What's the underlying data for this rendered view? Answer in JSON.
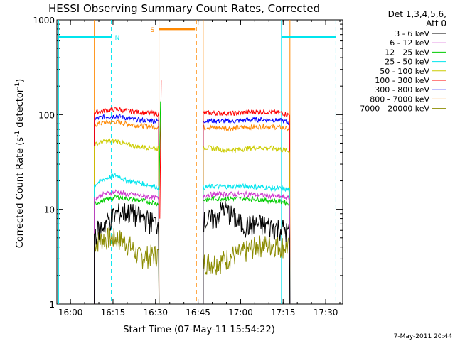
{
  "chart_data": {
    "type": "line",
    "title": "HESSI Observing Summary Count Rates, Corrected",
    "xlabel": "Start Time (07-May-11 15:54:22)",
    "ylabel": "Corrected Count Rate (s",
    "ylabel_sup1": "-1",
    "ylabel_mid": " detector",
    "ylabel_sup2": "-1",
    "ylabel_end": ")",
    "y_scale": "log",
    "xlim": [
      15.92,
      17.6
    ],
    "ylim": [
      1,
      1000
    ],
    "x_ticks": [
      {
        "value": 16.0,
        "label": "16:00"
      },
      {
        "value": 16.25,
        "label": "16:15"
      },
      {
        "value": 16.5,
        "label": "16:30"
      },
      {
        "value": 16.75,
        "label": "16:45"
      },
      {
        "value": 17.0,
        "label": "17:00"
      },
      {
        "value": 17.25,
        "label": "17:15"
      },
      {
        "value": 17.5,
        "label": "17:30"
      }
    ],
    "y_ticks": [
      {
        "value": 1,
        "label": "1"
      },
      {
        "value": 10,
        "label": "10"
      },
      {
        "value": 100,
        "label": "100"
      },
      {
        "value": 1000,
        "label": "1000"
      }
    ],
    "legend_header": [
      "Det 1,3,4,5,6,",
      "Att 0"
    ],
    "legend_position": "right",
    "segments": [
      [
        16.14,
        16.52
      ],
      [
        16.78,
        17.29
      ]
    ],
    "series": [
      {
        "name": "3 - 6 keV",
        "color": "#000000",
        "values": [
          [
            16.14,
            5.5
          ],
          [
            16.2,
            7.0
          ],
          [
            16.27,
            9.0
          ],
          [
            16.33,
            9.5
          ],
          [
            16.4,
            8.5
          ],
          [
            16.47,
            7.5
          ],
          [
            16.52,
            7.0
          ],
          [
            16.78,
            7.5
          ],
          [
            16.85,
            8.0
          ],
          [
            16.9,
            10.5
          ],
          [
            16.95,
            8.5
          ],
          [
            17.0,
            7.0
          ],
          [
            17.05,
            6.8
          ],
          [
            17.1,
            7.0
          ],
          [
            17.15,
            6.8
          ],
          [
            17.2,
            6.5
          ],
          [
            17.25,
            6.3
          ],
          [
            17.29,
            5.5
          ]
        ]
      },
      {
        "name": "6 - 12 keV",
        "color": "#cc33cc",
        "values": [
          [
            16.14,
            13
          ],
          [
            16.2,
            14.5
          ],
          [
            16.27,
            15.5
          ],
          [
            16.33,
            14.5
          ],
          [
            16.4,
            14
          ],
          [
            16.47,
            13.5
          ],
          [
            16.52,
            13
          ],
          [
            16.78,
            14
          ],
          [
            16.85,
            14.5
          ],
          [
            16.95,
            14.5
          ],
          [
            17.05,
            14.5
          ],
          [
            17.15,
            14
          ],
          [
            17.25,
            13.5
          ],
          [
            17.29,
            13
          ]
        ]
      },
      {
        "name": "12 - 25 keV",
        "color": "#00cc00",
        "values": [
          [
            16.14,
            11.5
          ],
          [
            16.2,
            12.5
          ],
          [
            16.27,
            13.5
          ],
          [
            16.33,
            13.0
          ],
          [
            16.4,
            12.5
          ],
          [
            16.47,
            12
          ],
          [
            16.52,
            11.5
          ],
          [
            16.78,
            12.5
          ],
          [
            16.85,
            13
          ],
          [
            16.95,
            13
          ],
          [
            17.05,
            13
          ],
          [
            17.15,
            12.5
          ],
          [
            17.25,
            12
          ],
          [
            17.29,
            11.5
          ]
        ]
      },
      {
        "name": "25 - 50 keV",
        "color": "#00e5ee",
        "values": [
          [
            16.14,
            18
          ],
          [
            16.2,
            21
          ],
          [
            16.27,
            23
          ],
          [
            16.33,
            20
          ],
          [
            16.4,
            19
          ],
          [
            16.47,
            18
          ],
          [
            16.52,
            17
          ],
          [
            16.78,
            17
          ],
          [
            16.85,
            17.5
          ],
          [
            16.95,
            17.5
          ],
          [
            17.05,
            17.5
          ],
          [
            17.15,
            17
          ],
          [
            17.25,
            16.5
          ],
          [
            17.29,
            16
          ]
        ]
      },
      {
        "name": "50 - 100 keV",
        "color": "#cccc00",
        "values": [
          [
            16.14,
            48
          ],
          [
            16.2,
            52
          ],
          [
            16.27,
            53
          ],
          [
            16.33,
            48
          ],
          [
            16.4,
            46
          ],
          [
            16.47,
            45
          ],
          [
            16.52,
            44
          ],
          [
            16.78,
            45
          ],
          [
            16.85,
            44
          ],
          [
            16.92,
            42
          ],
          [
            17.0,
            43
          ],
          [
            17.1,
            45
          ],
          [
            17.2,
            44
          ],
          [
            17.29,
            41
          ]
        ]
      },
      {
        "name": "100 - 300 keV",
        "color": "#ff0000",
        "values": [
          [
            16.14,
            105
          ],
          [
            16.2,
            110
          ],
          [
            16.27,
            115
          ],
          [
            16.33,
            110
          ],
          [
            16.4,
            106
          ],
          [
            16.47,
            104
          ],
          [
            16.52,
            102
          ],
          [
            16.78,
            105
          ],
          [
            16.85,
            104
          ],
          [
            16.95,
            103
          ],
          [
            17.05,
            106
          ],
          [
            17.15,
            108
          ],
          [
            17.25,
            104
          ],
          [
            17.29,
            98
          ]
        ]
      },
      {
        "name": "300 - 800 keV",
        "color": "#0000ff",
        "values": [
          [
            16.14,
            90
          ],
          [
            16.2,
            95
          ],
          [
            16.27,
            97
          ],
          [
            16.33,
            92
          ],
          [
            16.4,
            88
          ],
          [
            16.47,
            87
          ],
          [
            16.52,
            85
          ],
          [
            16.78,
            86
          ],
          [
            16.85,
            86
          ],
          [
            16.95,
            85
          ],
          [
            17.05,
            88
          ],
          [
            17.15,
            89
          ],
          [
            17.25,
            86
          ],
          [
            17.29,
            82
          ]
        ]
      },
      {
        "name": "800 - 7000 keV",
        "color": "#ff8800",
        "values": [
          [
            16.14,
            78
          ],
          [
            16.2,
            83
          ],
          [
            16.27,
            84
          ],
          [
            16.33,
            80
          ],
          [
            16.4,
            77
          ],
          [
            16.47,
            75
          ],
          [
            16.52,
            74
          ],
          [
            16.78,
            74
          ],
          [
            16.85,
            73
          ],
          [
            16.95,
            72
          ],
          [
            17.05,
            74
          ],
          [
            17.15,
            75
          ],
          [
            17.25,
            73
          ],
          [
            17.29,
            70
          ]
        ]
      },
      {
        "name": "7000 - 20000 keV",
        "color": "#8b8b00",
        "values": [
          [
            16.14,
            4.5
          ],
          [
            16.2,
            5.0
          ],
          [
            16.27,
            5.0
          ],
          [
            16.33,
            4.5
          ],
          [
            16.4,
            3.2
          ],
          [
            16.47,
            3.3
          ],
          [
            16.52,
            3.4
          ],
          [
            16.78,
            2.8
          ],
          [
            16.85,
            2.8
          ],
          [
            16.9,
            2.9
          ],
          [
            16.95,
            3.3
          ],
          [
            17.0,
            3.4
          ],
          [
            17.1,
            4.2
          ],
          [
            17.2,
            4.3
          ],
          [
            17.29,
            4.0
          ]
        ]
      }
    ],
    "spike": {
      "x": 16.525,
      "from": 8,
      "to": 230
    },
    "night_periods": [
      {
        "label": "N",
        "start": 15.93,
        "end": 16.24,
        "level": 660,
        "color": "#00e5ee"
      },
      {
        "label": "",
        "start": 17.24,
        "end": 17.56,
        "level": 660,
        "color": "#00e5ee"
      }
    ],
    "saa_periods": [
      {
        "label": "S",
        "start": 16.52,
        "end": 16.74,
        "level": 800,
        "color": "#ff8800"
      }
    ],
    "vlines": [
      {
        "x": 15.93,
        "style": "solid",
        "color": "#00e5ee"
      },
      {
        "x": 16.24,
        "style": "dash",
        "color": "#00e5ee"
      },
      {
        "x": 17.24,
        "style": "solid",
        "color": "#00e5ee"
      },
      {
        "x": 17.56,
        "style": "dash",
        "color": "#00e5ee"
      },
      {
        "x": 16.52,
        "style": "solid",
        "color": "#ff8800"
      },
      {
        "x": 16.74,
        "style": "dash",
        "color": "#ff8800"
      },
      {
        "x": 16.14,
        "style": "solid",
        "color": "#ff8800"
      },
      {
        "x": 16.78,
        "style": "solid",
        "color": "#ff8800"
      },
      {
        "x": 17.29,
        "style": "solid",
        "color": "#ff8800"
      }
    ],
    "timestamp": "7-May-2011 20:44"
  }
}
